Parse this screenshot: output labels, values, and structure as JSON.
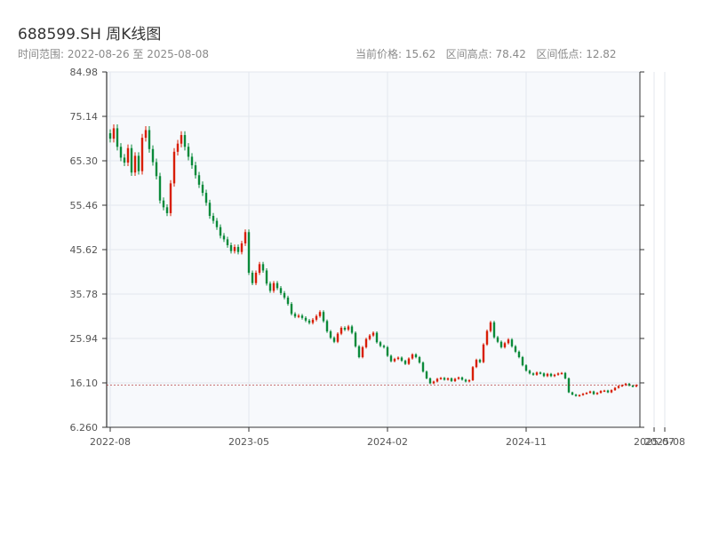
{
  "header": {
    "title": "688599.SH 周K线图",
    "range_text": "时间范围: 2022-08-26 至 2025-08-08",
    "current_price": "当前价格: 15.62",
    "period_high": "区间高点: 78.42",
    "period_low": "区间低点: 12.82"
  },
  "chart_data": {
    "type": "candlestick",
    "title": "688599.SH 周K线图",
    "ylim": [
      6.26,
      84.98
    ],
    "y_ticks": [
      "6.260",
      "16.10",
      "25.94",
      "35.78",
      "45.62",
      "55.46",
      "65.30",
      "75.14",
      "84.98"
    ],
    "x_ticks": [
      {
        "label": "2022-08",
        "week": 0
      },
      {
        "label": "2023-05",
        "week": 39
      },
      {
        "label": "2024-02",
        "week": 78
      },
      {
        "label": "2024-11",
        "week": 117
      },
      {
        "label": "2025-07",
        "week": 153
      },
      {
        "label": "2025-08",
        "week": 156
      }
    ],
    "grid": true,
    "up_color": "#d81e06",
    "down_color": "#0a8a3a",
    "price_line_color": "#aa1a1a",
    "start_date": "2022-08-26",
    "end_date": "2025-08-08",
    "current_price": 15.62,
    "period_high": 78.42,
    "period_low": 12.82,
    "weekly_close": [
      70.2,
      72.5,
      68.4,
      66.0,
      64.9,
      68.1,
      62.7,
      66.4,
      63.0,
      70.4,
      72.1,
      67.9,
      65.0,
      61.9,
      56.5,
      55.0,
      53.7,
      60.3,
      67.3,
      69.1,
      71.0,
      68.4,
      66.2,
      64.3,
      62.1,
      60.0,
      58.2,
      56.0,
      53.1,
      52.0,
      50.6,
      48.7,
      47.9,
      46.6,
      45.3,
      46.2,
      45.1,
      47.0,
      49.5,
      40.5,
      38.2,
      40.5,
      42.4,
      41.0,
      38.1,
      36.5,
      38.2,
      37.1,
      36.0,
      35.0,
      33.6,
      31.4,
      30.8,
      31.0,
      30.5,
      29.9,
      29.4,
      30.1,
      30.9,
      31.8,
      29.8,
      27.5,
      26.1,
      25.2,
      27.0,
      28.3,
      27.9,
      28.6,
      27.2,
      24.2,
      21.8,
      24.0,
      25.8,
      26.6,
      27.2,
      25.1,
      24.3,
      24.0,
      22.1,
      20.9,
      21.4,
      21.7,
      21.0,
      20.3,
      21.5,
      22.4,
      21.8,
      20.6,
      18.6,
      17.1,
      16.0,
      16.4,
      17.0,
      17.2,
      16.8,
      17.1,
      16.5,
      17.0,
      17.3,
      16.8,
      16.4,
      16.7,
      19.6,
      21.2,
      20.7,
      24.6,
      27.6,
      29.5,
      26.2,
      25.2,
      24.0,
      24.9,
      25.7,
      24.2,
      23.0,
      21.8,
      20.0,
      18.8,
      18.2,
      17.9,
      18.4,
      18.2,
      17.6,
      18.1,
      17.6,
      17.9,
      18.2,
      18.3,
      17.1,
      14.0,
      13.5,
      13.2,
      13.4,
      13.7,
      13.9,
      14.2,
      13.6,
      13.9,
      14.3,
      14.4,
      14.0,
      14.5,
      15.0,
      15.4,
      15.6,
      15.9,
      15.5,
      15.3,
      15.62
    ]
  }
}
